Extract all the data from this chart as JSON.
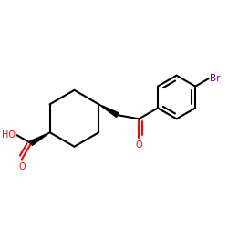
{
  "bg_color": "#ffffff",
  "bond_color": "#000000",
  "oxygen_color": "#ff0000",
  "bromine_color": "#800080",
  "line_width": 1.5,
  "fig_size": [
    2.5,
    2.5
  ],
  "dpi": 100,
  "xlim": [
    0.0,
    1.0
  ],
  "ylim": [
    0.1,
    0.9
  ]
}
